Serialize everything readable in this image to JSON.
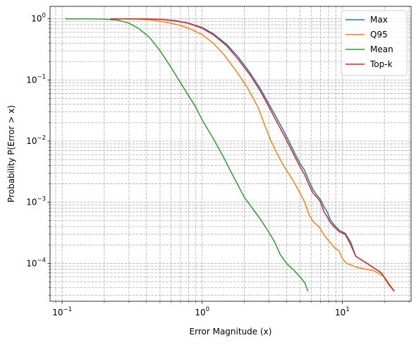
{
  "chart_data": {
    "type": "line",
    "title": "",
    "xlabel": "Error Magnitude (x)",
    "ylabel": "Probability P(Error > x)",
    "xscale": "log",
    "yscale": "log",
    "xlim": [
      0.082,
      31
    ],
    "ylim": [
      2.4e-05,
      1.6
    ],
    "grid": "both (major and minor), dashed",
    "legend_position": "top-right",
    "x_ticks": [
      {
        "value": 0.1,
        "base": "10",
        "exp": "−1"
      },
      {
        "value": 1,
        "base": "10",
        "exp": "0"
      },
      {
        "value": 10,
        "base": "10",
        "exp": "1"
      }
    ],
    "y_ticks": [
      {
        "value": 0.0001,
        "base": "10",
        "exp": "−4"
      },
      {
        "value": 0.001,
        "base": "10",
        "exp": "−3"
      },
      {
        "value": 0.01,
        "base": "10",
        "exp": "−2"
      },
      {
        "value": 0.1,
        "base": "10",
        "exp": "−1"
      },
      {
        "value": 1,
        "base": "10",
        "exp": "0"
      }
    ],
    "series": [
      {
        "name": "Max",
        "color": "#1f77b4",
        "points": [
          [
            0.22,
            1.0
          ],
          [
            0.35,
            1.0
          ],
          [
            0.5,
            0.98
          ],
          [
            0.65,
            0.93
          ],
          [
            0.8,
            0.85
          ],
          [
            1.0,
            0.72
          ],
          [
            1.2,
            0.57
          ],
          [
            1.5,
            0.38
          ],
          [
            1.8,
            0.24
          ],
          [
            2.2,
            0.13
          ],
          [
            2.6,
            0.072
          ],
          [
            3.0,
            0.04
          ],
          [
            3.4,
            0.024
          ],
          [
            3.8,
            0.015
          ],
          [
            4.2,
            0.0095
          ],
          [
            4.6,
            0.0062
          ],
          [
            5.0,
            0.0043
          ],
          [
            5.4,
            0.0033
          ],
          [
            5.8,
            0.0022
          ],
          [
            6.2,
            0.0016
          ],
          [
            6.6,
            0.0013
          ],
          [
            7.0,
            0.0011
          ],
          [
            7.4,
            0.00085
          ],
          [
            7.8,
            0.0007
          ],
          [
            8.2,
            0.00052
          ],
          [
            8.8,
            0.00042
          ],
          [
            9.5,
            0.00035
          ],
          [
            10.5,
            0.00031
          ],
          [
            11.5,
            0.00022
          ],
          [
            12.5,
            0.00013
          ],
          [
            15.0,
            0.0001
          ],
          [
            19.0,
            7e-05
          ],
          [
            21.5,
            4.5e-05
          ],
          [
            23.5,
            3.5e-05
          ]
        ]
      },
      {
        "name": "Q95",
        "color": "#ff7f0e",
        "points": [
          [
            0.22,
            1.0
          ],
          [
            0.35,
            0.99
          ],
          [
            0.45,
            0.95
          ],
          [
            0.55,
            0.88
          ],
          [
            0.7,
            0.78
          ],
          [
            0.85,
            0.66
          ],
          [
            1.0,
            0.55
          ],
          [
            1.2,
            0.4
          ],
          [
            1.45,
            0.25
          ],
          [
            1.75,
            0.14
          ],
          [
            2.1,
            0.075
          ],
          [
            2.5,
            0.036
          ],
          [
            2.8,
            0.018
          ],
          [
            3.1,
            0.01
          ],
          [
            3.4,
            0.0065
          ],
          [
            3.8,
            0.004
          ],
          [
            4.2,
            0.0028
          ],
          [
            4.6,
            0.002
          ],
          [
            5.0,
            0.0014
          ],
          [
            5.4,
            0.001
          ],
          [
            5.8,
            0.00062
          ],
          [
            6.2,
            0.00048
          ],
          [
            6.8,
            0.0004
          ],
          [
            7.5,
            0.00028
          ],
          [
            8.2,
            0.00022
          ],
          [
            8.8,
            0.00018
          ],
          [
            9.5,
            0.00016
          ],
          [
            10.0,
            0.00012
          ],
          [
            10.7,
            0.0001
          ],
          [
            13.0,
            8.5e-05
          ],
          [
            17.0,
            7.5e-05
          ],
          [
            20.0,
            6e-05
          ],
          [
            23.5,
            3.5e-05
          ]
        ]
      },
      {
        "name": "Mean",
        "color": "#2ca02c",
        "points": [
          [
            0.105,
            1.0
          ],
          [
            0.15,
            1.0
          ],
          [
            0.2,
            0.99
          ],
          [
            0.25,
            0.95
          ],
          [
            0.3,
            0.85
          ],
          [
            0.35,
            0.7
          ],
          [
            0.42,
            0.5
          ],
          [
            0.5,
            0.3
          ],
          [
            0.6,
            0.16
          ],
          [
            0.7,
            0.09
          ],
          [
            0.8,
            0.055
          ],
          [
            0.9,
            0.036
          ],
          [
            1.0,
            0.022
          ],
          [
            1.2,
            0.011
          ],
          [
            1.4,
            0.0058
          ],
          [
            1.6,
            0.0032
          ],
          [
            1.8,
            0.0019
          ],
          [
            2.0,
            0.0012
          ],
          [
            2.3,
            0.00078
          ],
          [
            2.6,
            0.00053
          ],
          [
            3.0,
            0.00032
          ],
          [
            3.3,
            0.00022
          ],
          [
            3.6,
            0.00014
          ],
          [
            4.0,
            0.0001
          ],
          [
            4.5,
            7.8e-05
          ],
          [
            5.0,
            6e-05
          ],
          [
            5.4,
            4.8e-05
          ],
          [
            5.7,
            3.5e-05
          ]
        ]
      },
      {
        "name": "Top-k",
        "color": "#d62728",
        "points": [
          [
            0.22,
            1.0
          ],
          [
            0.35,
            1.0
          ],
          [
            0.5,
            0.98
          ],
          [
            0.65,
            0.92
          ],
          [
            0.8,
            0.84
          ],
          [
            1.0,
            0.7
          ],
          [
            1.2,
            0.55
          ],
          [
            1.5,
            0.36
          ],
          [
            1.8,
            0.22
          ],
          [
            2.2,
            0.12
          ],
          [
            2.6,
            0.066
          ],
          [
            3.0,
            0.036
          ],
          [
            3.4,
            0.021
          ],
          [
            3.8,
            0.013
          ],
          [
            4.2,
            0.0083
          ],
          [
            4.6,
            0.0055
          ],
          [
            5.0,
            0.0038
          ],
          [
            5.4,
            0.0028
          ],
          [
            5.8,
            0.0019
          ],
          [
            6.2,
            0.0014
          ],
          [
            6.6,
            0.0012
          ],
          [
            7.0,
            0.001
          ],
          [
            7.4,
            0.0007
          ],
          [
            7.8,
            0.00058
          ],
          [
            8.2,
            0.00047
          ],
          [
            8.8,
            0.00039
          ],
          [
            9.5,
            0.00033
          ],
          [
            10.5,
            0.0003
          ],
          [
            11.5,
            0.0002
          ],
          [
            12.5,
            0.00013
          ],
          [
            15.0,
            0.0001
          ],
          [
            19.0,
            7e-05
          ],
          [
            21.5,
            4.5e-05
          ],
          [
            23.5,
            3.5e-05
          ]
        ]
      }
    ]
  }
}
